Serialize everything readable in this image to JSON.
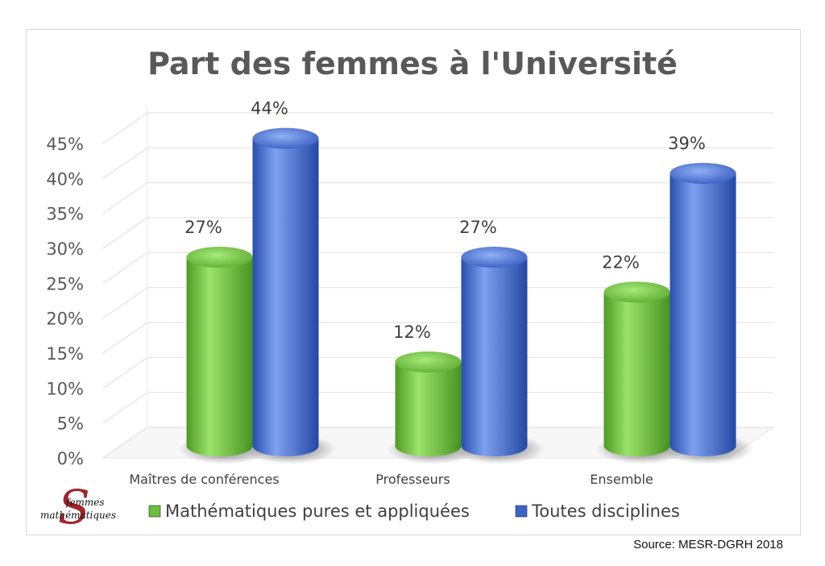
{
  "chart_data": {
    "type": "bar",
    "title": "Part des femmes à l'Université",
    "categories": [
      "Maîtres de conférences",
      "Professeurs",
      "Ensemble"
    ],
    "series": [
      {
        "name": "Mathématiques pures et appliquées",
        "values": [
          27,
          12,
          22
        ],
        "labels": [
          "27%",
          "12%",
          "22%"
        ],
        "color": "#6cbf3a"
      },
      {
        "name": "Toutes disciplines",
        "values": [
          44,
          27,
          39
        ],
        "labels": [
          "44%",
          "27%",
          "39%"
        ],
        "color": "#3b63c9"
      }
    ],
    "ylim": [
      0,
      45
    ],
    "yticks": [
      "0%",
      "5%",
      "10%",
      "15%",
      "20%",
      "25%",
      "30%",
      "35%",
      "40%",
      "45%"
    ],
    "grid": true,
    "legend_position": "bottom"
  },
  "source": "Source: MESR-DGRH 2018",
  "logo": {
    "line1": "femmes",
    "line2": "mathématiques"
  }
}
